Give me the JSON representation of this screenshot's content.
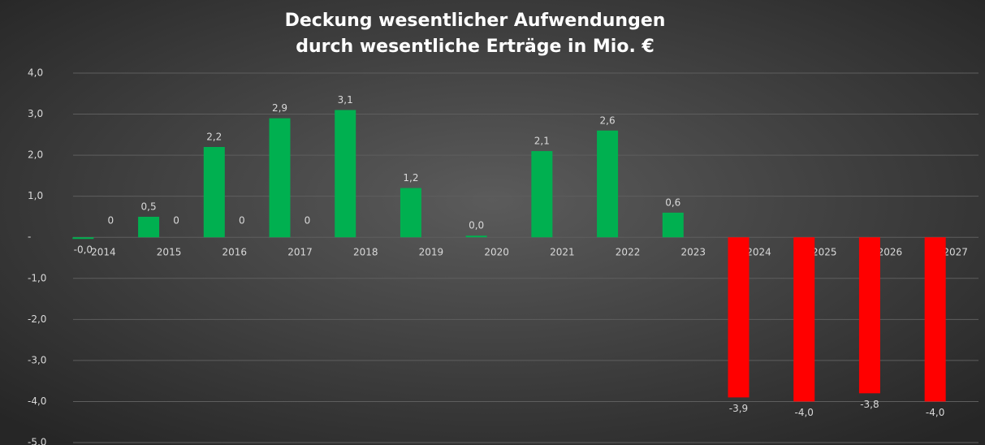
{
  "chart_data": {
    "type": "bar",
    "title": [
      "Deckung wesentlicher Aufwendungen",
      "durch wesentliche Erträge in Mio. €"
    ],
    "categories": [
      "2014",
      "2015",
      "2016",
      "2017",
      "2018",
      "2019",
      "2020",
      "2021",
      "2022",
      "2023",
      "2024",
      "2025",
      "2026",
      "2027"
    ],
    "series": [
      {
        "values": [
          -0.04,
          0.5,
          2.2,
          2.9,
          3.1,
          1.2,
          0.04,
          2.1,
          2.6,
          0.6,
          -3.9,
          -4.0,
          -3.8,
          -4.0
        ],
        "value_labels": [
          "-0,0",
          "0,5",
          "2,2",
          "2,9",
          "3,1",
          "1,2",
          "0,0",
          "2,1",
          "2,6",
          "0,6",
          "-3,9",
          "-4,0",
          "-3,8",
          "-4,0"
        ],
        "colors": [
          "#00b050",
          "#00b050",
          "#00b050",
          "#00b050",
          "#00b050",
          "#00b050",
          "#00b050",
          "#00b050",
          "#00b050",
          "#00b050",
          "#ff0000",
          "#ff0000",
          "#ff0000",
          "#ff0000"
        ]
      },
      {
        "values": [
          0,
          0,
          0,
          0,
          null,
          null,
          null,
          null,
          null,
          null,
          null,
          null,
          null,
          null
        ]
      }
    ],
    "ylim": [
      -5,
      4
    ],
    "yticks": [
      {
        "value": -5,
        "label": "-5,0"
      },
      {
        "value": -4,
        "label": "-4,0"
      },
      {
        "value": -3,
        "label": "-3,0"
      },
      {
        "value": -2,
        "label": "-2,0"
      },
      {
        "value": -1,
        "label": "-1,0"
      },
      {
        "value": 0,
        "label": "-"
      },
      {
        "value": 1,
        "label": "1,0"
      },
      {
        "value": 2,
        "label": "2,0"
      },
      {
        "value": 3,
        "label": "3,0"
      },
      {
        "value": 4,
        "label": "4,0"
      }
    ],
    "grid": true
  }
}
